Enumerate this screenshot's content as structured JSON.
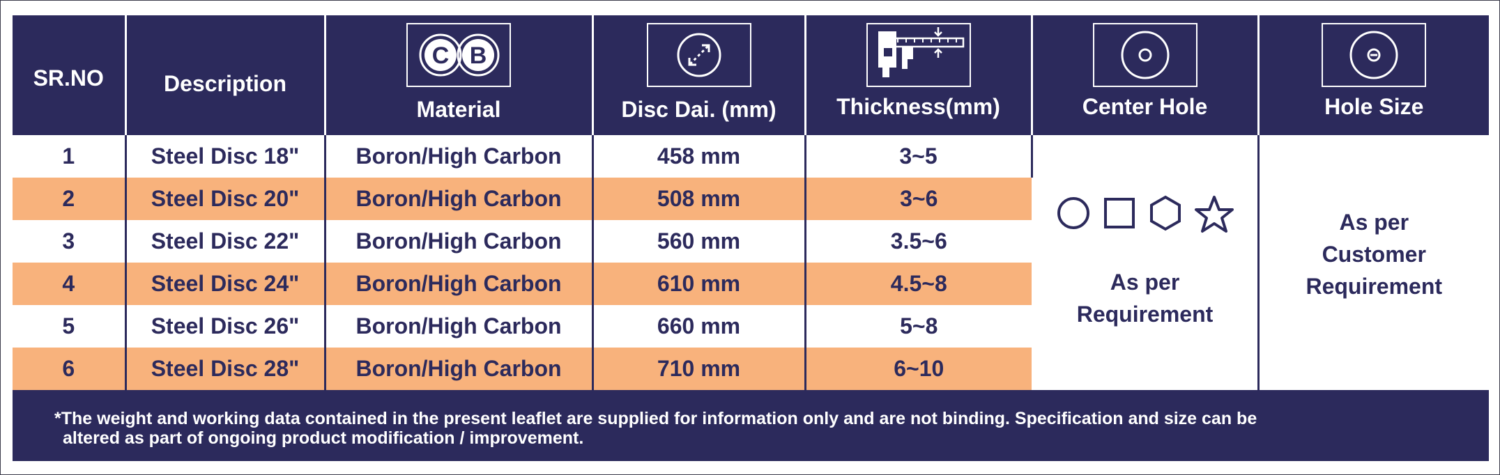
{
  "colors": {
    "navy": "#2c2a5c",
    "orange": "#f8b27c",
    "white": "#ffffff"
  },
  "headers": {
    "sr_no": "SR.NO",
    "description": "Description",
    "material": "Material",
    "disc_dia": "Disc Dai. (mm)",
    "thickness": "Thickness(mm)",
    "center_hole": "Center Hole",
    "hole_size": "Hole Size"
  },
  "header_icons": {
    "material": "boron-carbon-cb-icon",
    "disc_dia": "diameter-icon",
    "thickness": "caliper-icon",
    "center_hole": "center-hole-icon",
    "hole_size": "hole-size-icon"
  },
  "material_icon_letters": [
    "C",
    "B"
  ],
  "rows": [
    {
      "sr": "1",
      "description": "Steel Disc 18\"",
      "material": "Boron/High Carbon",
      "dia": "458 mm",
      "thickness": "3~5"
    },
    {
      "sr": "2",
      "description": "Steel Disc 20\"",
      "material": "Boron/High Carbon",
      "dia": "508 mm",
      "thickness": "3~6"
    },
    {
      "sr": "3",
      "description": "Steel Disc 22\"",
      "material": "Boron/High Carbon",
      "dia": "560 mm",
      "thickness": "3.5~6"
    },
    {
      "sr": "4",
      "description": "Steel Disc 24\"",
      "material": "Boron/High Carbon",
      "dia": "610 mm",
      "thickness": "4.5~8"
    },
    {
      "sr": "5",
      "description": "Steel Disc 26\"",
      "material": "Boron/High Carbon",
      "dia": "660 mm",
      "thickness": "5~8"
    },
    {
      "sr": "6",
      "description": "Steel Disc 28\"",
      "material": "Boron/High Carbon",
      "dia": "710 mm",
      "thickness": "6~10"
    }
  ],
  "center_hole": {
    "shapes": [
      "circle-icon",
      "square-icon",
      "hexagon-icon",
      "star-icon"
    ],
    "line1": "As per",
    "line2": "Requirement"
  },
  "hole_size": {
    "line1": "As per",
    "line2": "Customer",
    "line3": "Requirement"
  },
  "footnote": {
    "line1": "*The weight and working data contained in the present leaflet are supplied for information only and are not binding. Specification and size can be",
    "line2": "altered as part of ongoing product modification / improvement."
  }
}
